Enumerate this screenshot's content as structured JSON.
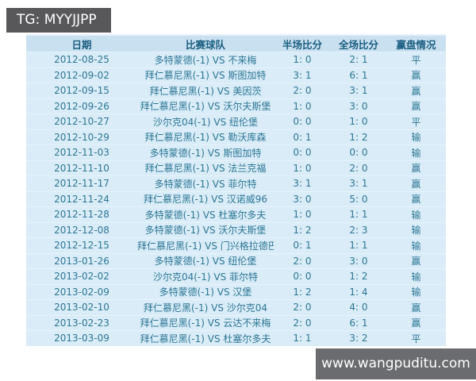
{
  "title_bar": {
    "text": "TG: MYYJJPP"
  },
  "watermark_bar": {
    "text": "www.wangpuditu.com"
  },
  "table": {
    "columns": [
      "日期",
      "比赛球队",
      "半场比分",
      "全场比分",
      "赢盘情况"
    ],
    "rows": [
      [
        "2012-08-25",
        "多特蒙德(-1) VS 不来梅",
        "1: 0",
        "2: 1",
        "平"
      ],
      [
        "2012-09-02",
        "拜仁慕尼黑(-1) VS 斯图加特",
        "3: 1",
        "6: 1",
        "赢"
      ],
      [
        "2012-09-15",
        "拜仁慕尼黑(-1) VS 美因茨",
        "2: 0",
        "3: 1",
        "赢"
      ],
      [
        "2012-09-26",
        "拜仁慕尼黑(-1) VS 沃尔夫斯堡",
        "1: 0",
        "3: 0",
        "赢"
      ],
      [
        "2012-10-27",
        "沙尔克04(-1) VS 纽伦堡",
        "0: 0",
        "1: 0",
        "平"
      ],
      [
        "2012-10-29",
        "拜仁慕尼黑(-1) VS 勒沃库森",
        "0: 1",
        "1: 2",
        "输"
      ],
      [
        "2012-11-03",
        "多特蒙德(-1) VS 斯图加特",
        "0: 0",
        "0: 0",
        "输"
      ],
      [
        "2012-11-10",
        "拜仁慕尼黑(-1) VS 法兰克福",
        "1: 0",
        "2: 0",
        "赢"
      ],
      [
        "2012-11-17",
        "多特蒙德(-1) VS 菲尔特",
        "3: 1",
        "3: 1",
        "赢"
      ],
      [
        "2012-11-24",
        "拜仁慕尼黑(-1) VS 汉诺威96",
        "3: 0",
        "5: 0",
        "赢"
      ],
      [
        "2012-11-28",
        "多特蒙德(-1) VS 杜塞尔多夫",
        "1: 0",
        "1: 1",
        "输"
      ],
      [
        "2012-12-08",
        "多特蒙德(-1) VS 沃尔夫斯堡",
        "1: 2",
        "2: 3",
        "输"
      ],
      [
        "2012-12-15",
        "拜仁慕尼黑(-1) VS 门兴格拉德巴赫",
        "0: 1",
        "1: 1",
        "输"
      ],
      [
        "2013-01-26",
        "多特蒙德(-1) VS 纽伦堡",
        "2: 0",
        "3: 0",
        "赢"
      ],
      [
        "2013-02-02",
        "沙尔克04(-1) VS 菲尔特",
        "0: 0",
        "1: 2",
        "输"
      ],
      [
        "2013-02-09",
        "多特蒙德(-1) VS 汉堡",
        "1: 2",
        "1: 4",
        "输"
      ],
      [
        "2013-02-10",
        "拜仁慕尼黑(-1) VS 沙尔克04",
        "2: 0",
        "4: 0",
        "赢"
      ],
      [
        "2013-02-23",
        "拜仁慕尼黑(-1) VS 云达不来梅",
        "2: 0",
        "6: 1",
        "赢"
      ],
      [
        "2013-03-09",
        "拜仁慕尼黑(-1) VS 杜塞尔多夫",
        "1: 1",
        "3: 2",
        "平"
      ]
    ]
  },
  "colors": {
    "table_header_bg": "#c9e0f0",
    "table_body_bg": "#d9ecf8",
    "table_header_text": "#1a5e80",
    "table_body_text": "#2d7795",
    "title_bar_bg": "#58585b",
    "watermark_bar_bg": "#6b6c6f"
  }
}
